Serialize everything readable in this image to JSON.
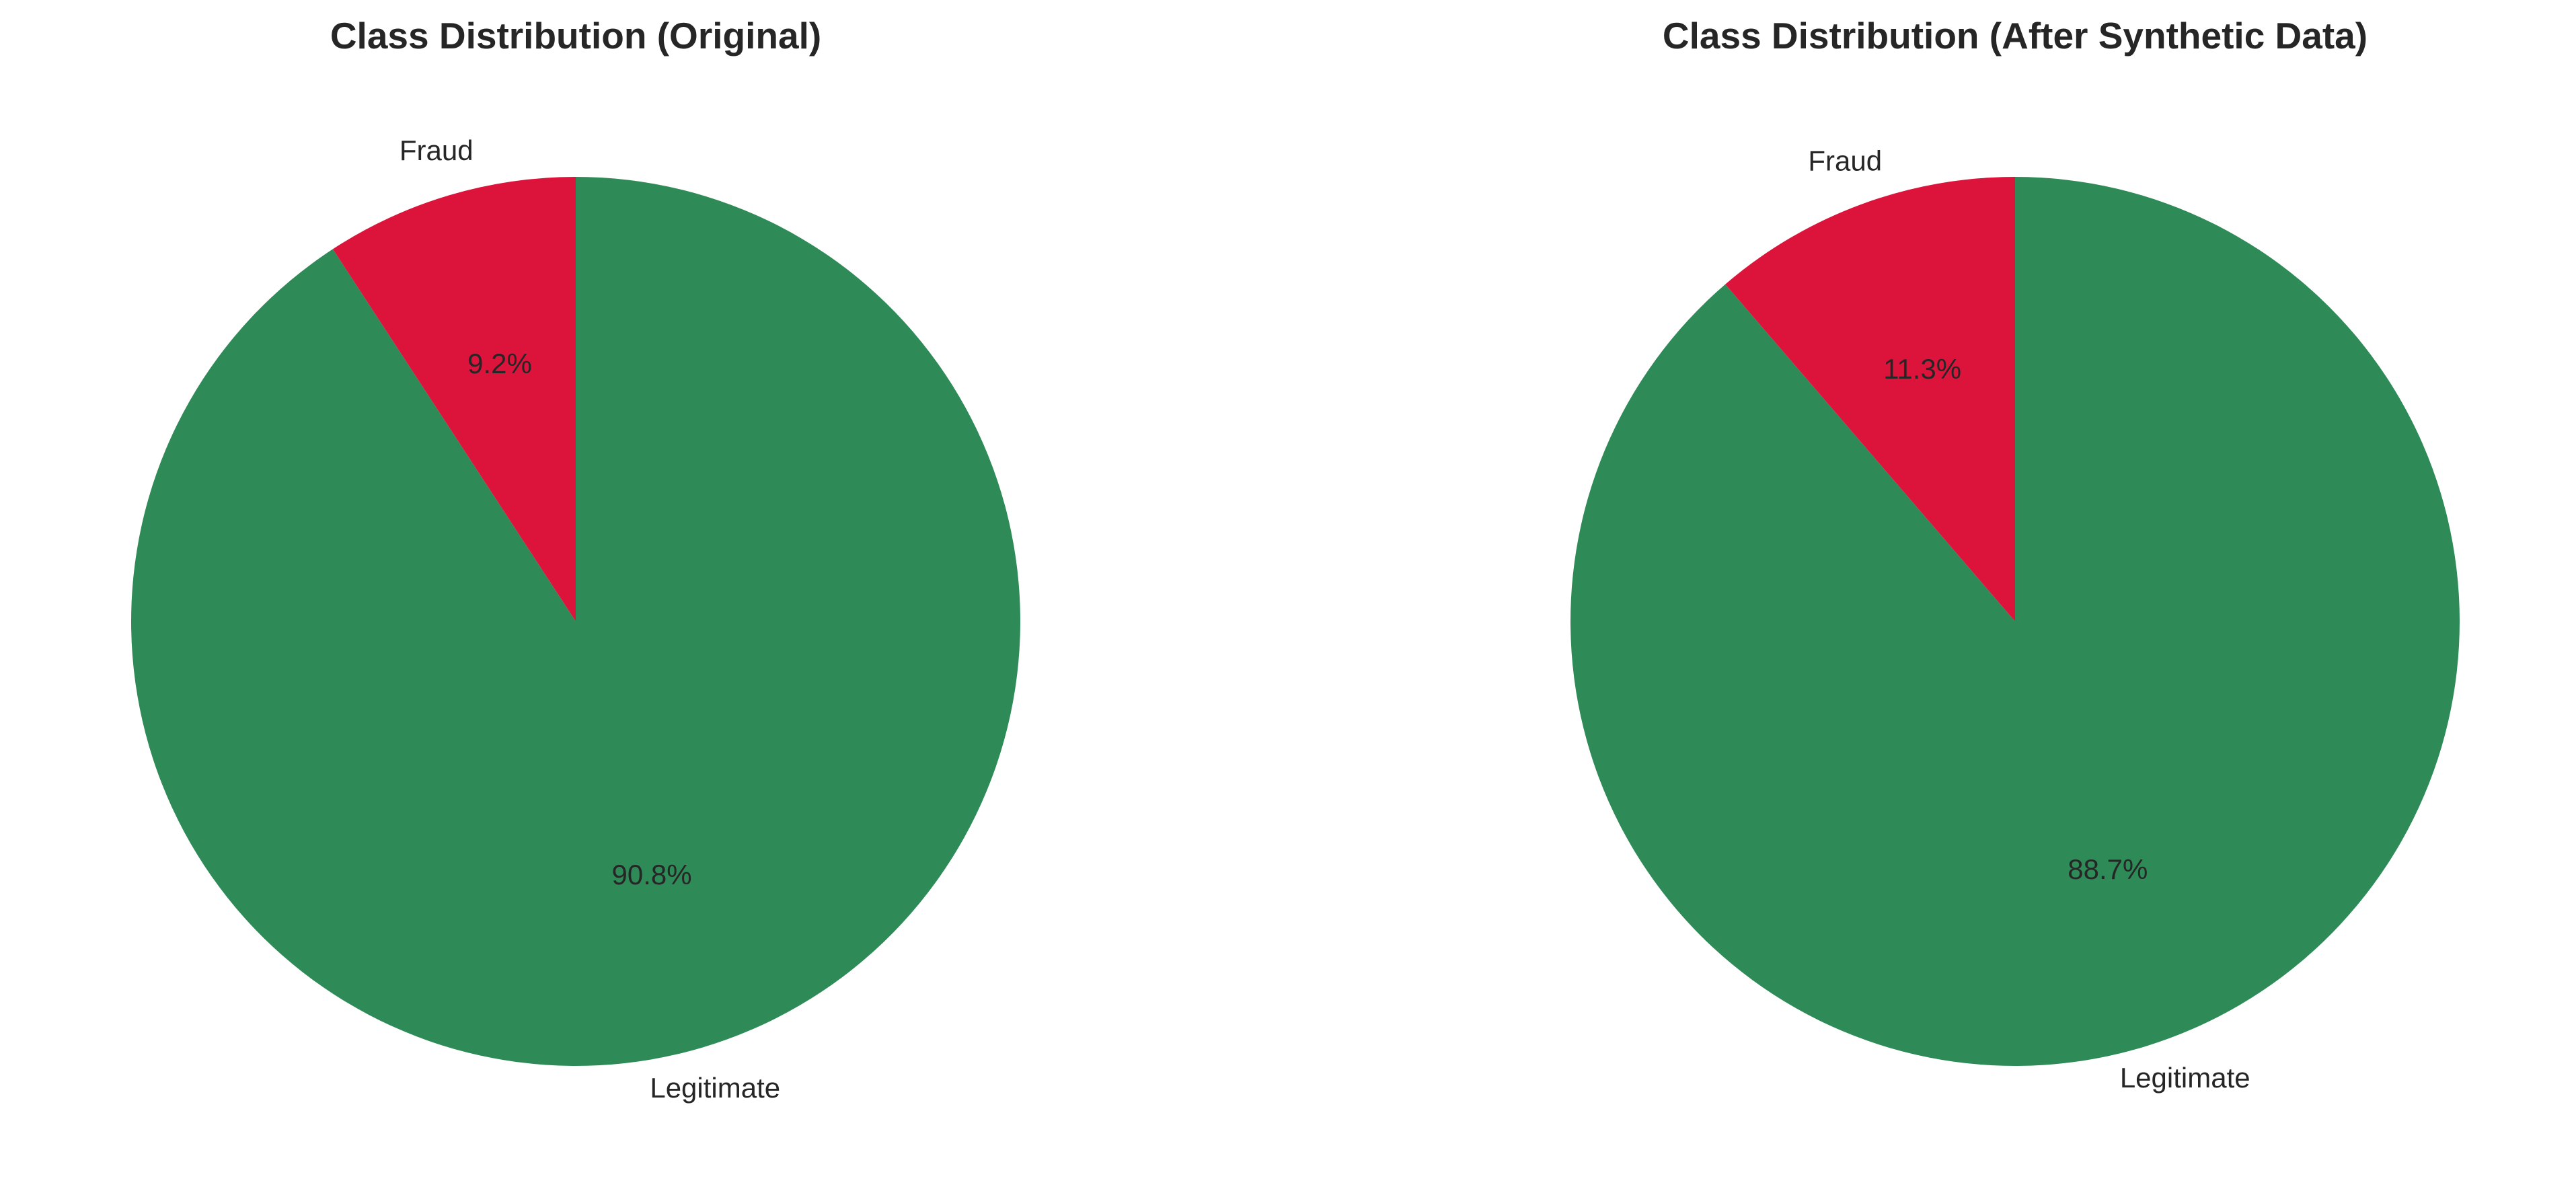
{
  "chart_data": [
    {
      "type": "pie",
      "title": "Class Distribution (Original)",
      "categories": [
        "Legitimate",
        "Fraud"
      ],
      "values": [
        90.8,
        9.2
      ],
      "percent_labels": [
        "90.8%",
        "9.2%"
      ],
      "colors": [
        "#2e8b57",
        "#dc143c"
      ],
      "start_angle_deg": 90,
      "direction": "clockwise"
    },
    {
      "type": "pie",
      "title": "Class Distribution (After Synthetic Data)",
      "categories": [
        "Legitimate",
        "Fraud"
      ],
      "values": [
        88.7,
        11.3
      ],
      "percent_labels": [
        "88.7%",
        "11.3%"
      ],
      "colors": [
        "#2e8b57",
        "#dc143c"
      ],
      "start_angle_deg": 90,
      "direction": "clockwise"
    }
  ]
}
